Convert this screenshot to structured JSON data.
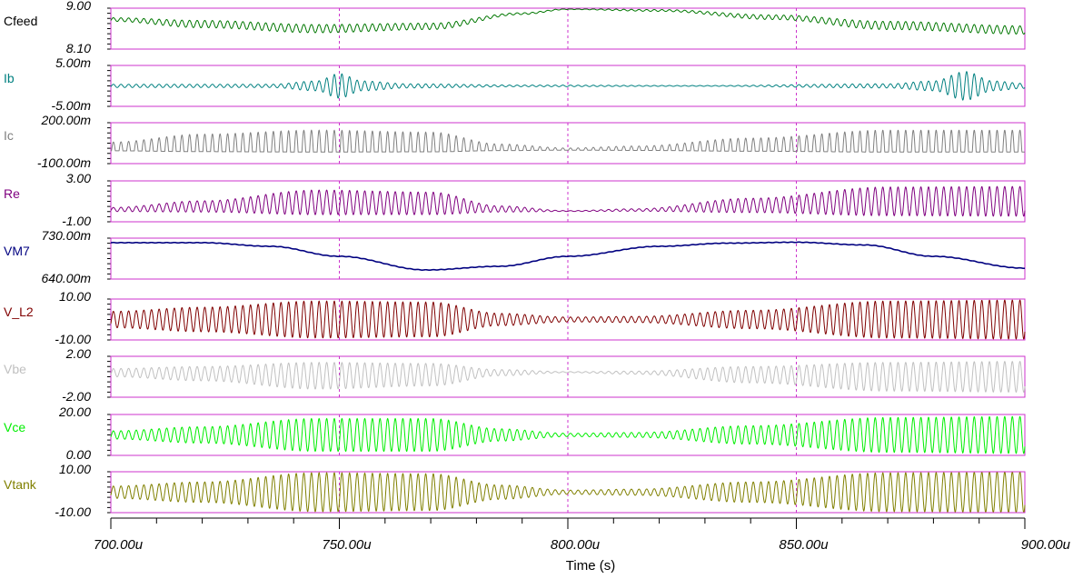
{
  "chart_data": {
    "type": "line",
    "xlabel": "Time (s)",
    "x_range_us": [
      700,
      900
    ],
    "x_ticks": [
      "700.00u",
      "750.00u",
      "800.00u",
      "850.00u",
      "900.00u"
    ],
    "x_tick_values_us": [
      700,
      750,
      800,
      850,
      900
    ],
    "vertical_grid_at_us": [
      750,
      800,
      850
    ],
    "frame_color": "#cc33cc",
    "carrier_period_us": 1.667,
    "series": [
      {
        "name": "Vcfeed",
        "label": "Cfeed",
        "color": "#007700",
        "label_color": "#000000",
        "ymax_label": "9.00",
        "ymin_label": "8.10",
        "ylim": [
          8.1,
          9.0
        ],
        "kind": "am",
        "envelope_t": [
          700,
          720,
          745,
          770,
          790,
          800,
          820,
          845,
          870,
          900
        ],
        "envelope_center": [
          8.75,
          8.65,
          8.55,
          8.6,
          8.88,
          8.98,
          8.95,
          8.8,
          8.62,
          8.52
        ],
        "envelope_amp": [
          0.04,
          0.08,
          0.09,
          0.07,
          0.02,
          0.01,
          0.02,
          0.05,
          0.09,
          0.09
        ]
      },
      {
        "name": "Ib",
        "label": "Ib",
        "color": "#008080",
        "label_color": "#008080",
        "ymax_label": "5.00m",
        "ymin_label": "-5.00m",
        "ylim": [
          -0.005,
          0.005
        ],
        "kind": "am",
        "envelope_t": [
          700,
          735,
          745,
          750,
          755,
          765,
          790,
          830,
          870,
          880,
          887,
          893,
          900
        ],
        "envelope_center": [
          0,
          0,
          0,
          0,
          0,
          0,
          0,
          0,
          0,
          0,
          0,
          0,
          0
        ],
        "envelope_amp": [
          0.0004,
          0.0004,
          0.0012,
          0.003,
          0.0012,
          0.0005,
          0.0002,
          0.0001,
          0.0005,
          0.0012,
          0.0035,
          0.0012,
          0.0006
        ]
      },
      {
        "name": "Ic",
        "label": "Ic",
        "color": "#808080",
        "label_color": "#808080",
        "ymax_label": "200.00m",
        "ymin_label": "-100.00m",
        "ylim": [
          -0.1,
          0.2
        ],
        "kind": "pulse",
        "envelope_t": [
          700,
          720,
          745,
          770,
          785,
          800,
          815,
          840,
          870,
          900
        ],
        "envelope_center": [
          0,
          0,
          0,
          0,
          0,
          0,
          0,
          0,
          0,
          0
        ],
        "envelope_amp": [
          0.04,
          0.08,
          0.1,
          0.09,
          0.03,
          0.01,
          0.02,
          0.06,
          0.1,
          0.1
        ]
      },
      {
        "name": "Re",
        "label": "Re",
        "color": "#800080",
        "label_color": "#800080",
        "ymax_label": "3.00",
        "ymin_label": "-1.00",
        "ylim": [
          -1.0,
          3.0
        ],
        "kind": "am",
        "envelope_t": [
          700,
          720,
          745,
          770,
          785,
          800,
          815,
          840,
          870,
          900
        ],
        "envelope_center": [
          0.2,
          0.5,
          0.9,
          0.8,
          0.25,
          0.05,
          0.15,
          0.6,
          1.0,
          1.0
        ],
        "envelope_amp": [
          0.2,
          0.55,
          1.2,
          1.1,
          0.3,
          0.04,
          0.12,
          0.7,
          1.4,
          1.45
        ]
      },
      {
        "name": "VM7",
        "label": "VM7",
        "color": "#000080",
        "label_color": "#000080",
        "ymax_label": "730.00m",
        "ymin_label": "640.00m",
        "ylim": [
          0.64,
          0.73
        ],
        "kind": "slow",
        "envelope_t": [
          700,
          720,
          735,
          750,
          769,
          785,
          800,
          820,
          835,
          850,
          865,
          880,
          900
        ],
        "envelope_center": [
          0.72,
          0.72,
          0.712,
          0.69,
          0.66,
          0.668,
          0.69,
          0.712,
          0.719,
          0.721,
          0.715,
          0.69,
          0.664
        ],
        "envelope_amp": [
          0.0005,
          0.0005,
          0.0005,
          0.0005,
          0.0005,
          0.0005,
          0.0005,
          0.0005,
          0.0005,
          0.0005,
          0.0005,
          0.0005,
          0.0005
        ]
      },
      {
        "name": "V_L2",
        "label": "V_L2",
        "color": "#800000",
        "label_color": "#800000",
        "ymax_label": "10.00",
        "ymin_label": "-10.00",
        "ylim": [
          -10,
          10
        ],
        "kind": "am",
        "envelope_t": [
          700,
          720,
          745,
          770,
          785,
          800,
          815,
          840,
          870,
          900
        ],
        "envelope_center": [
          0,
          0,
          0,
          0,
          0,
          0,
          0,
          0,
          0,
          0
        ],
        "envelope_amp": [
          4,
          6,
          9,
          8.5,
          3,
          1.2,
          1.5,
          4.5,
          9,
          9.5
        ]
      },
      {
        "name": "Vbe",
        "label": "Vbe",
        "color": "#c0c0c0",
        "label_color": "#c0c0c0",
        "ymax_label": "2.00",
        "ymin_label": "-2.00",
        "ylim": [
          -2,
          2
        ],
        "kind": "am",
        "envelope_t": [
          700,
          720,
          745,
          770,
          785,
          800,
          815,
          840,
          870,
          900
        ],
        "envelope_center": [
          0.4,
          0.3,
          0.1,
          0.2,
          0.4,
          0.45,
          0.4,
          0.2,
          0.0,
          0.0
        ],
        "envelope_amp": [
          0.4,
          0.7,
          1.3,
          1.1,
          0.3,
          0.05,
          0.15,
          0.8,
          1.4,
          1.5
        ]
      },
      {
        "name": "Vce",
        "label": "Vce",
        "color": "#00ee00",
        "label_color": "#00ee00",
        "ymax_label": "20.00",
        "ymin_label": "0.00",
        "ylim": [
          0,
          20
        ],
        "kind": "am",
        "envelope_t": [
          700,
          720,
          745,
          770,
          785,
          800,
          815,
          840,
          870,
          900
        ],
        "envelope_center": [
          10,
          10,
          10,
          10,
          10,
          10,
          10,
          10,
          10,
          10
        ],
        "envelope_amp": [
          2,
          4,
          8,
          8,
          3,
          0.8,
          1.2,
          4.5,
          8.5,
          9
        ]
      },
      {
        "name": "Vtank",
        "label": "Vtank",
        "color": "#808000",
        "label_color": "#808000",
        "ymax_label": "10.00",
        "ymin_label": "-10.00",
        "ylim": [
          -10,
          10
        ],
        "kind": "am",
        "envelope_t": [
          700,
          720,
          745,
          770,
          785,
          800,
          815,
          840,
          870,
          900
        ],
        "envelope_center": [
          0,
          0,
          0,
          0,
          0,
          0,
          0,
          0,
          0,
          0
        ],
        "envelope_amp": [
          3,
          5,
          9.5,
          9,
          3.5,
          1,
          1.5,
          5,
          9.5,
          10
        ]
      }
    ]
  }
}
